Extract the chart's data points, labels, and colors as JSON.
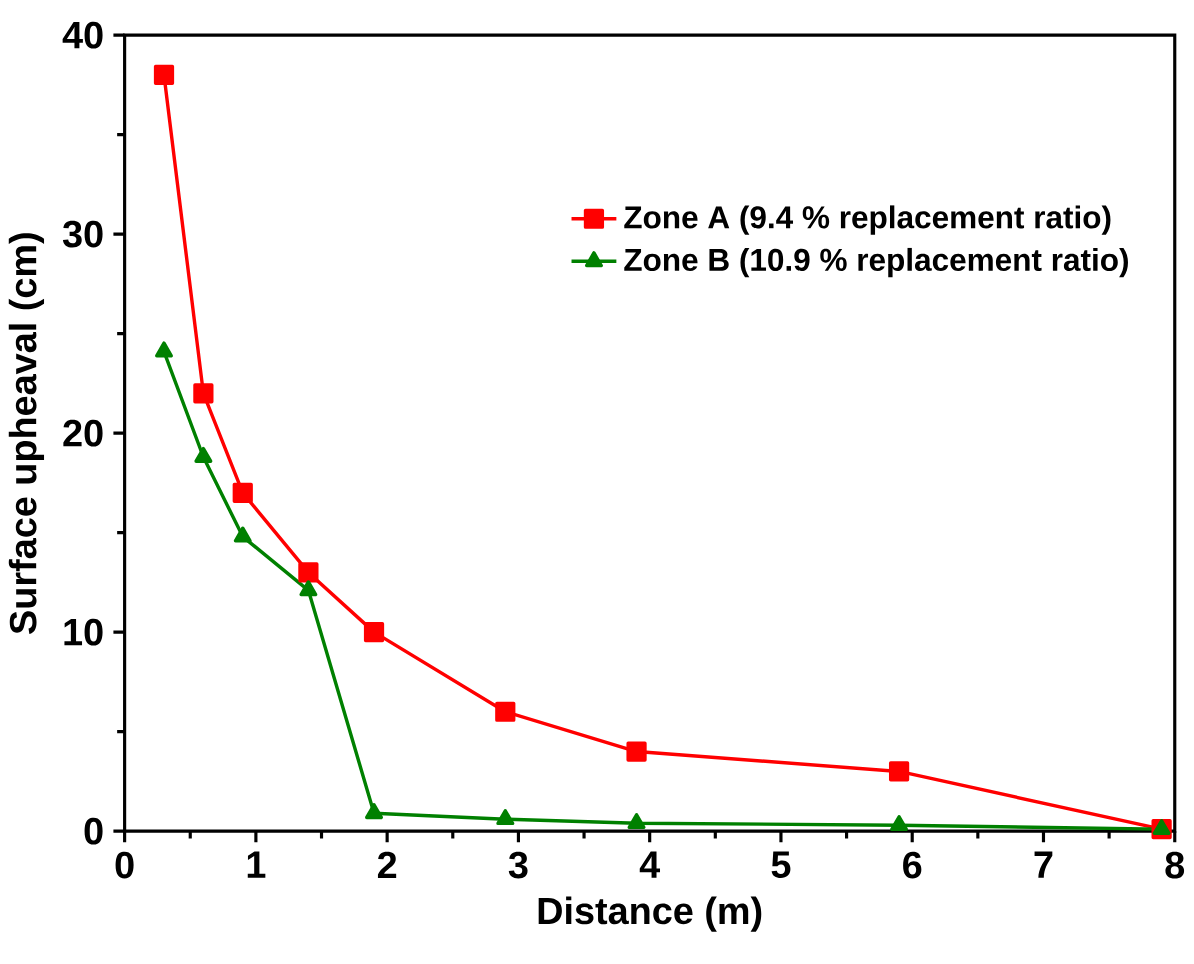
{
  "chart_data": {
    "type": "line",
    "xlabel": "Distance (m)",
    "ylabel": "Surface upheaval (cm)",
    "x": [
      0.3,
      0.6,
      0.9,
      1.4,
      1.9,
      2.9,
      3.9,
      5.9,
      7.9
    ],
    "series": [
      {
        "name": "Zone A (9.4 % replacement ratio)",
        "color": "#ff0000",
        "marker": "square",
        "values": [
          38,
          22,
          17,
          13,
          10,
          6,
          4,
          3,
          0.1
        ]
      },
      {
        "name": "Zone B (10.9 % replacement ratio)",
        "color": "#008000",
        "marker": "triangle",
        "values": [
          24.1,
          18.8,
          14.8,
          12.1,
          0.9,
          0.6,
          0.4,
          0.3,
          0.1
        ]
      }
    ],
    "xlim": [
      0,
      8
    ],
    "ylim": [
      0,
      40
    ],
    "xticks": [
      0,
      1,
      2,
      3,
      4,
      5,
      6,
      7,
      8
    ],
    "yticks": [
      0,
      10,
      20,
      30,
      40
    ],
    "legend": "top right",
    "grid": false,
    "line_style": "solid"
  }
}
